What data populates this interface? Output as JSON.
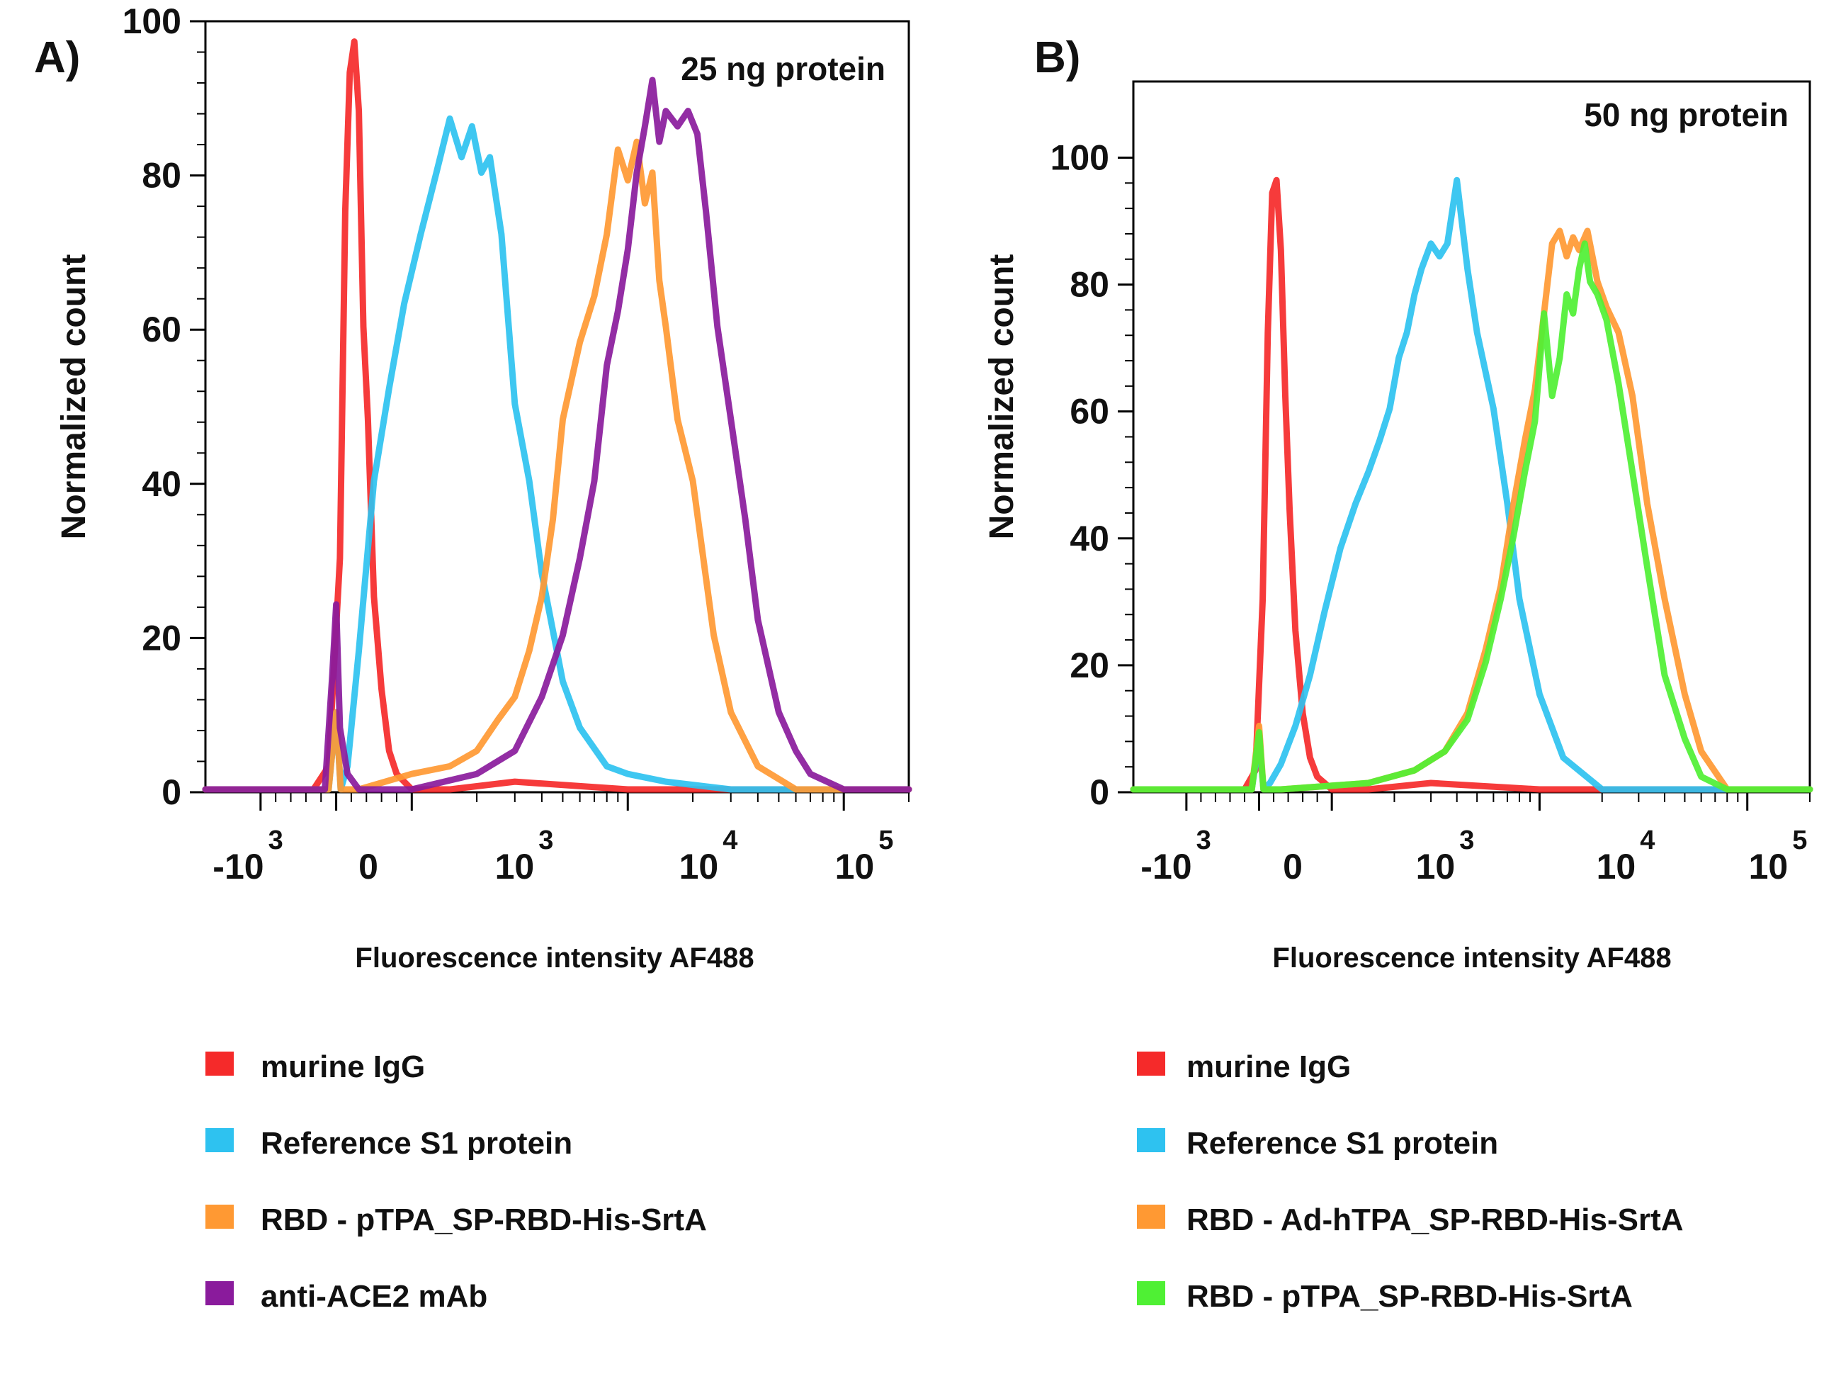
{
  "chart_data": [
    {
      "type": "line",
      "panel_label": "A)",
      "annotation": "25 ng protein",
      "title": "",
      "xlabel": "Fluorescence intensity AF488",
      "ylabel": "Normalized count",
      "x_scale": "biexponential",
      "x_ticks": [
        {
          "base": "-10",
          "exp": "3",
          "value": -1000
        },
        {
          "base": "0",
          "exp": "",
          "value": 0
        },
        {
          "base": "10",
          "exp": "3",
          "value": 1000
        },
        {
          "base": "10",
          "exp": "4",
          "value": 10000
        },
        {
          "base": "10",
          "exp": "5",
          "value": 100000
        }
      ],
      "y_ticks": [
        "0",
        "20",
        "40",
        "60",
        "80",
        "100"
      ],
      "ylim": [
        0,
        100
      ],
      "grid": false,
      "series": [
        {
          "name": "murine IgG",
          "color": "#f52a2a",
          "x": [
            -1800,
            -300,
            -100,
            50,
            120,
            180,
            240,
            300,
            360,
            420,
            500,
            600,
            700,
            800,
            900,
            1000,
            1500,
            3000,
            10000,
            30000,
            100000,
            200000
          ],
          "y": [
            0,
            0,
            3,
            30,
            75,
            93,
            97,
            88,
            60,
            48,
            25,
            13,
            5,
            2,
            1,
            0,
            0,
            1,
            0,
            0,
            0,
            0
          ]
        },
        {
          "name": "Reference S1 protein",
          "color": "#2ec2f0",
          "x": [
            -1800,
            -100,
            0,
            60,
            150,
            300,
            500,
            700,
            900,
            1100,
            1300,
            1500,
            1700,
            1900,
            2100,
            2300,
            2600,
            3000,
            3500,
            4000,
            5000,
            6000,
            8000,
            10000,
            15000,
            30000,
            200000
          ],
          "y": [
            0,
            0,
            10,
            0,
            3,
            18,
            40,
            52,
            63,
            72,
            80,
            87,
            82,
            86,
            80,
            82,
            72,
            50,
            40,
            28,
            14,
            8,
            3,
            2,
            1,
            0,
            0
          ]
        },
        {
          "name": "RBD - pTPA_SP-RBD-His-SrtA",
          "color": "#ff9933",
          "x": [
            -1800,
            -100,
            0,
            60,
            300,
            1000,
            1500,
            2000,
            2500,
            3000,
            3500,
            4000,
            4500,
            5000,
            6000,
            7000,
            8000,
            9000,
            10000,
            11000,
            12000,
            13000,
            14000,
            15000,
            17000,
            20000,
            25000,
            30000,
            40000,
            60000,
            200000
          ],
          "y": [
            0,
            0,
            10,
            0,
            0,
            2,
            3,
            5,
            9,
            12,
            18,
            25,
            35,
            48,
            58,
            64,
            72,
            83,
            79,
            84,
            76,
            80,
            66,
            60,
            48,
            40,
            20,
            10,
            3,
            0,
            0
          ]
        },
        {
          "name": "anti-ACE2 mAb",
          "color": "#8a1b9c",
          "x": [
            -1800,
            -150,
            -50,
            0,
            50,
            150,
            300,
            1000,
            2000,
            3000,
            4000,
            5000,
            6000,
            7000,
            8000,
            9000,
            10000,
            11000,
            12000,
            13000,
            14000,
            15000,
            17000,
            19000,
            21000,
            23000,
            26000,
            30000,
            35000,
            40000,
            50000,
            60000,
            70000,
            100000,
            200000
          ],
          "y": [
            0,
            0,
            15,
            24,
            8,
            2,
            0,
            0,
            2,
            5,
            12,
            20,
            30,
            40,
            55,
            62,
            70,
            80,
            86,
            92,
            84,
            88,
            86,
            88,
            85,
            75,
            60,
            48,
            35,
            22,
            10,
            5,
            2,
            0,
            0
          ]
        }
      ]
    },
    {
      "type": "line",
      "panel_label": "B)",
      "annotation": "50 ng protein",
      "title": "",
      "xlabel": "Fluorescence intensity AF488",
      "ylabel": "Normalized count",
      "x_scale": "biexponential",
      "x_ticks": [
        {
          "base": "-10",
          "exp": "3",
          "value": -1000
        },
        {
          "base": "0",
          "exp": "",
          "value": 0
        },
        {
          "base": "10",
          "exp": "3",
          "value": 1000
        },
        {
          "base": "10",
          "exp": "4",
          "value": 10000
        },
        {
          "base": "10",
          "exp": "5",
          "value": 100000
        }
      ],
      "y_ticks": [
        "0",
        "20",
        "40",
        "60",
        "80",
        "100"
      ],
      "ylim": [
        0,
        112
      ],
      "grid": false,
      "series": [
        {
          "name": "murine IgG",
          "color": "#f52a2a",
          "x": [
            -1800,
            -200,
            -50,
            50,
            120,
            180,
            240,
            300,
            360,
            420,
            500,
            600,
            700,
            800,
            900,
            1000,
            1500,
            3000,
            10000,
            30000,
            200000
          ],
          "y": [
            0,
            0,
            3,
            30,
            72,
            94,
            96,
            85,
            62,
            44,
            25,
            12,
            5,
            2,
            1,
            0,
            0,
            1,
            0,
            0,
            0
          ]
        },
        {
          "name": "Reference S1 protein",
          "color": "#2ec2f0",
          "x": [
            -1800,
            -100,
            0,
            60,
            150,
            300,
            500,
            700,
            900,
            1100,
            1300,
            1500,
            1700,
            1900,
            2100,
            2300,
            2500,
            2700,
            3000,
            3300,
            3600,
            4000,
            4500,
            5000,
            6000,
            7000,
            8000,
            10000,
            13000,
            20000,
            200000
          ],
          "y": [
            0,
            0,
            8,
            0,
            1,
            4,
            10,
            18,
            28,
            38,
            45,
            50,
            55,
            60,
            68,
            72,
            78,
            82,
            86,
            84,
            86,
            96,
            82,
            72,
            60,
            45,
            30,
            15,
            5,
            0,
            0
          ]
        },
        {
          "name": "RBD - Ad-hTPA_SP-RBD-His-SrtA",
          "color": "#ff9933",
          "x": [
            -1800,
            -100,
            0,
            60,
            300,
            1500,
            2500,
            3500,
            4500,
            5500,
            6500,
            7500,
            8500,
            9500,
            10500,
            11500,
            12500,
            13500,
            14500,
            15500,
            17000,
            19000,
            21000,
            24000,
            28000,
            33000,
            40000,
            50000,
            60000,
            80000,
            200000
          ],
          "y": [
            0,
            0,
            10,
            0,
            0,
            1,
            3,
            6,
            12,
            22,
            32,
            45,
            55,
            63,
            75,
            86,
            88,
            84,
            87,
            85,
            88,
            80,
            76,
            72,
            62,
            45,
            30,
            15,
            6,
            0,
            0
          ]
        },
        {
          "name": "RBD - pTPA_SP-RBD-His-SrtA",
          "color": "#4ff034",
          "x": [
            -1800,
            -100,
            0,
            60,
            300,
            1500,
            2500,
            3500,
            4500,
            5500,
            6500,
            7500,
            8500,
            9500,
            10500,
            11500,
            12500,
            13500,
            14500,
            15500,
            16500,
            17500,
            19000,
            21000,
            24000,
            28000,
            33000,
            40000,
            50000,
            60000,
            80000,
            200000
          ],
          "y": [
            0,
            0,
            9,
            0,
            0,
            1,
            3,
            6,
            11,
            20,
            30,
            40,
            50,
            58,
            75,
            62,
            68,
            78,
            75,
            82,
            86,
            80,
            78,
            74,
            64,
            50,
            35,
            18,
            8,
            2,
            0,
            0
          ]
        }
      ]
    }
  ]
}
